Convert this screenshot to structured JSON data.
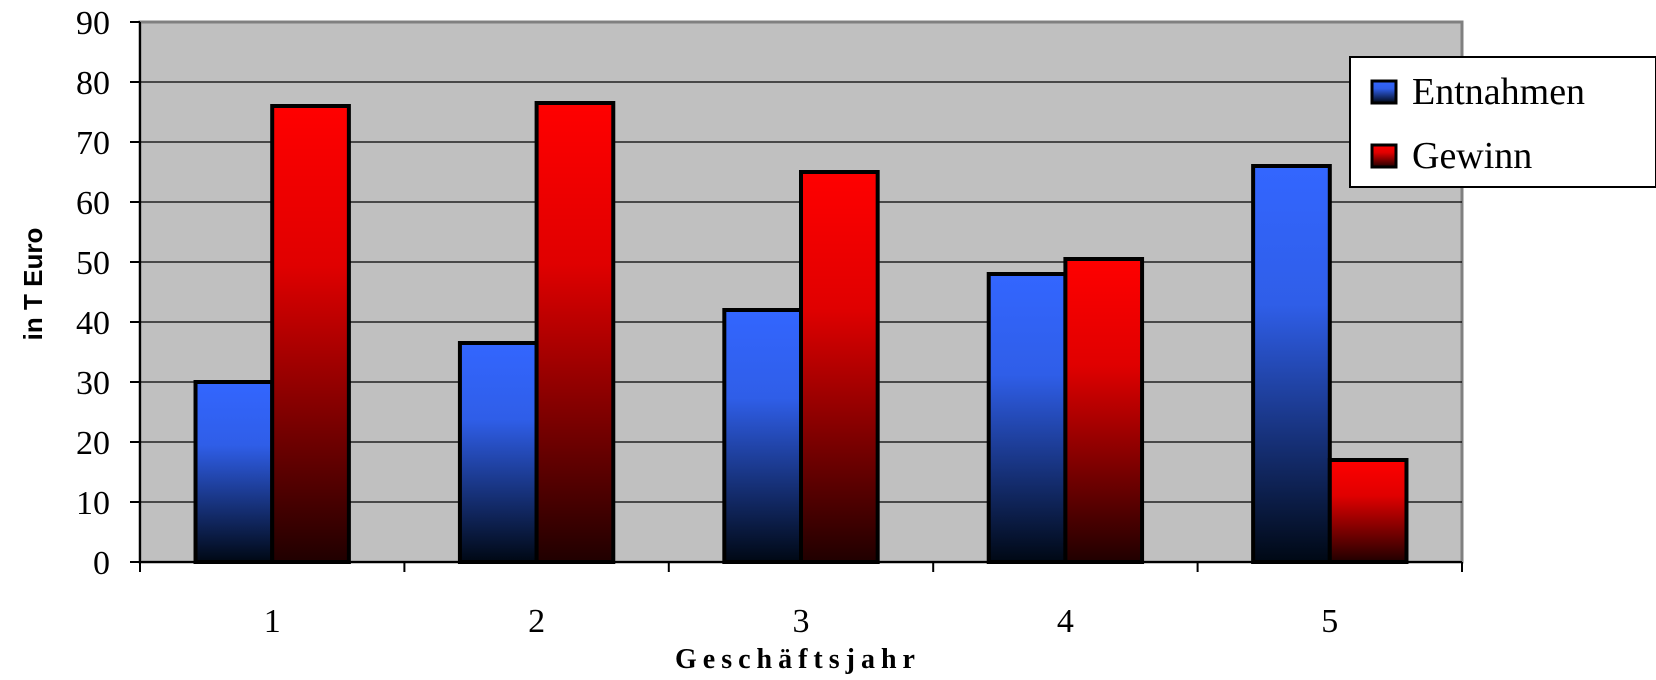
{
  "chart_data": {
    "type": "bar",
    "categories": [
      "1",
      "2",
      "3",
      "4",
      "5"
    ],
    "series": [
      {
        "name": "Entnahmen",
        "values": [
          30,
          36.5,
          42,
          48,
          66
        ],
        "color_top": "#3366ff",
        "color_bottom": "#000814"
      },
      {
        "name": "Gewinn",
        "values": [
          76,
          76.5,
          65,
          50.5,
          17
        ],
        "color_top": "#ff0000",
        "color_bottom": "#200000"
      }
    ],
    "title": "",
    "xlabel": "Geschäftsjahr",
    "ylabel": "in T Euro",
    "ylim": [
      0,
      90
    ],
    "yticks": [
      "0",
      "10",
      "20",
      "30",
      "40",
      "50",
      "60",
      "70",
      "80",
      "90"
    ],
    "grid": true,
    "plot_background": "#c0c0c0",
    "legend_position": "top-right"
  }
}
